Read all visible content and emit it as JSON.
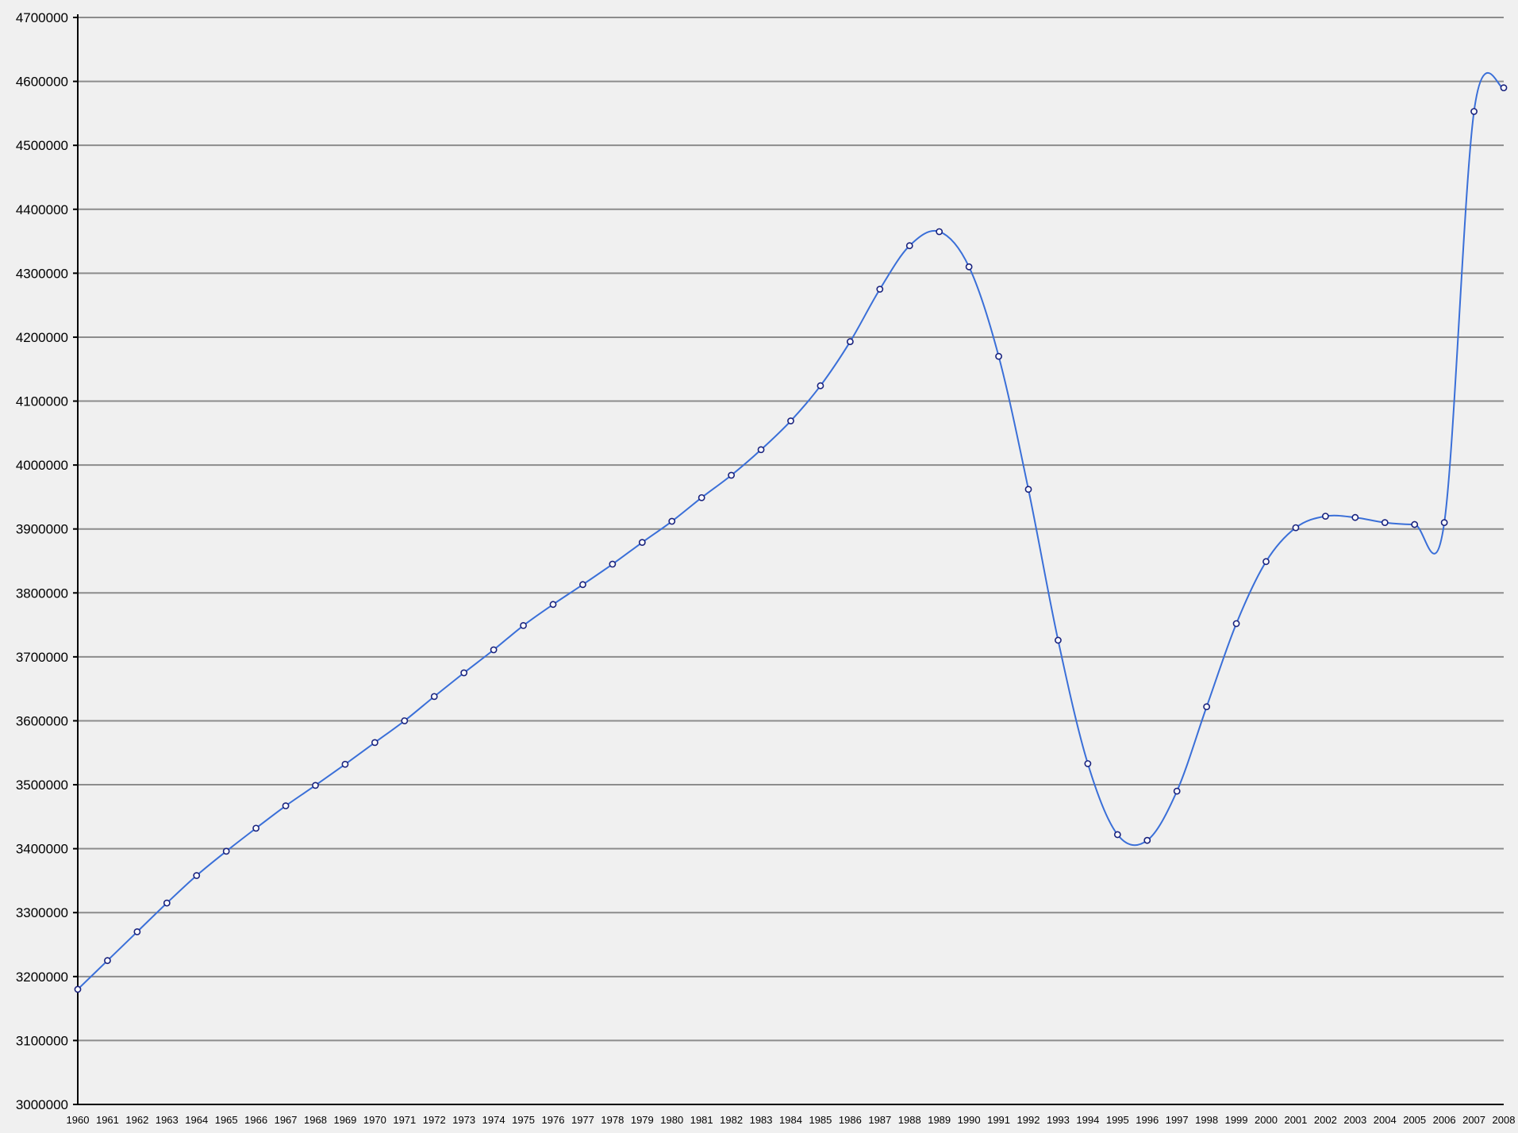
{
  "chart_data": {
    "type": "line",
    "x": [
      1960,
      1961,
      1962,
      1963,
      1964,
      1965,
      1966,
      1967,
      1968,
      1969,
      1970,
      1971,
      1972,
      1973,
      1974,
      1975,
      1976,
      1977,
      1978,
      1979,
      1980,
      1981,
      1982,
      1983,
      1984,
      1985,
      1986,
      1987,
      1988,
      1989,
      1990,
      1991,
      1992,
      1993,
      1994,
      1995,
      1996,
      1997,
      1998,
      1999,
      2000,
      2001,
      2002,
      2003,
      2004,
      2005,
      2006,
      2007,
      2008
    ],
    "series": [
      {
        "values": [
          3180000,
          3225000,
          3270000,
          3315000,
          3358000,
          3396000,
          3432000,
          3467000,
          3499000,
          3532000,
          3566000,
          3600000,
          3638000,
          3675000,
          3711000,
          3749000,
          3782000,
          3813000,
          3845000,
          3879000,
          3912000,
          3949000,
          3984000,
          4024000,
          4069000,
          4124000,
          4193000,
          4275000,
          4343000,
          4365000,
          4310000,
          4170000,
          3962000,
          3726000,
          3533000,
          3422000,
          3413000,
          3490000,
          3622000,
          3752000,
          3849000,
          3902000,
          3920000,
          3918000,
          3910000,
          3907000,
          3910000,
          4553000,
          4590000
        ]
      }
    ],
    "title": "",
    "xlabel": "",
    "ylabel": "",
    "xlim": [
      1960,
      2008
    ],
    "ylim": [
      3000000,
      4700000
    ],
    "y_ticks": [
      3000000,
      3100000,
      3200000,
      3300000,
      3400000,
      3500000,
      3600000,
      3700000,
      3800000,
      3900000,
      4000000,
      4100000,
      4200000,
      4300000,
      4400000,
      4500000,
      4600000,
      4700000
    ],
    "grid": true,
    "legend": "none",
    "colors": {
      "background": "#f0f0f0",
      "gridline": "#8c8c8c",
      "line": "#3a6fd8",
      "marker_edge": "#1a237e",
      "axis": "#000000"
    }
  }
}
